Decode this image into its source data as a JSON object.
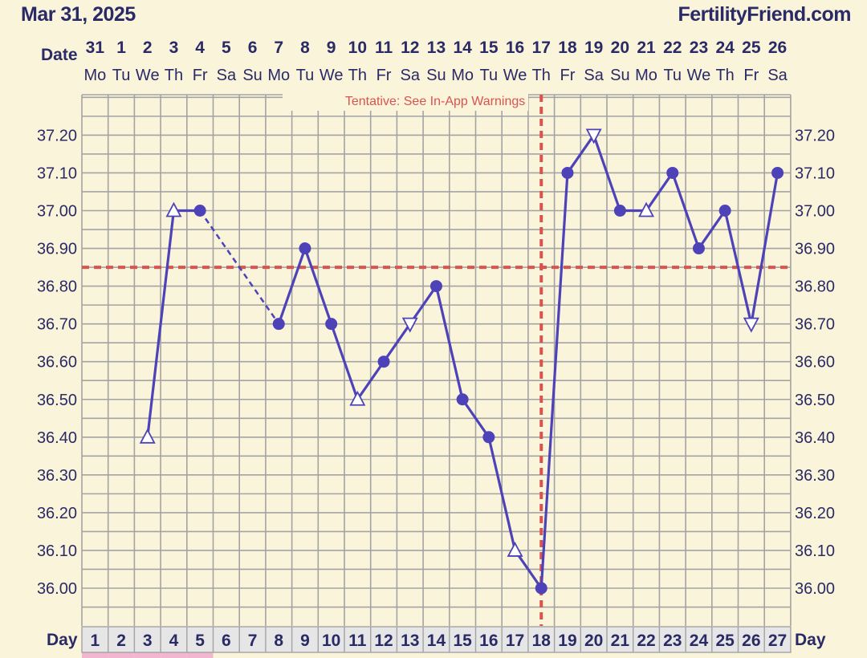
{
  "header": {
    "date": "Mar 31, 2025",
    "site": "FertilityFriend.com"
  },
  "colors": {
    "background": "#faf4da",
    "grid": "#a3a3a3",
    "line": "#4d42b8",
    "coverline": "#d9534f",
    "label": "#2a2a66",
    "menstruation": "#f2b6d0"
  },
  "chart_data": {
    "type": "line",
    "row_labels": {
      "date": "Date",
      "day": "Day"
    },
    "dates": [
      "31",
      "1",
      "2",
      "3",
      "4",
      "5",
      "6",
      "7",
      "8",
      "9",
      "10",
      "11",
      "12",
      "13",
      "14",
      "15",
      "16",
      "17",
      "18",
      "19",
      "20",
      "21",
      "22",
      "23",
      "24",
      "25",
      "26"
    ],
    "weekdays": [
      "Mo",
      "Tu",
      "We",
      "Th",
      "Fr",
      "Sa",
      "Su",
      "Mo",
      "Tu",
      "We",
      "Th",
      "Fr",
      "Sa",
      "Su",
      "Mo",
      "Tu",
      "We",
      "Th",
      "Fr",
      "Sa",
      "Su",
      "Mo",
      "Tu",
      "We",
      "Th",
      "Fr",
      "Sa"
    ],
    "cycle_days": [
      1,
      2,
      3,
      4,
      5,
      6,
      7,
      8,
      9,
      10,
      11,
      12,
      13,
      14,
      15,
      16,
      17,
      18,
      19,
      20,
      21,
      22,
      23,
      24,
      25,
      26,
      27
    ],
    "y_ticks": [
      "37.20",
      "37.10",
      "37.00",
      "36.90",
      "36.80",
      "36.70",
      "36.60",
      "36.50",
      "36.40",
      "36.30",
      "36.20",
      "36.10",
      "36.00"
    ],
    "ylim": [
      35.93,
      37.3
    ],
    "grid": true,
    "series": [
      {
        "points": [
          {
            "day": 3,
            "temp": 36.4,
            "marker": "triangle-up"
          },
          {
            "day": 4,
            "temp": 37.0,
            "marker": "triangle-up"
          },
          {
            "day": 5,
            "temp": 37.0,
            "marker": "circle"
          },
          {
            "day": 8,
            "temp": 36.7,
            "marker": "circle"
          },
          {
            "day": 9,
            "temp": 36.9,
            "marker": "circle"
          },
          {
            "day": 10,
            "temp": 36.7,
            "marker": "circle"
          },
          {
            "day": 11,
            "temp": 36.5,
            "marker": "triangle-up"
          },
          {
            "day": 12,
            "temp": 36.6,
            "marker": "circle"
          },
          {
            "day": 13,
            "temp": 36.7,
            "marker": "triangle-down"
          },
          {
            "day": 14,
            "temp": 36.8,
            "marker": "circle"
          },
          {
            "day": 15,
            "temp": 36.5,
            "marker": "circle"
          },
          {
            "day": 16,
            "temp": 36.4,
            "marker": "circle"
          },
          {
            "day": 17,
            "temp": 36.1,
            "marker": "triangle-up"
          },
          {
            "day": 18,
            "temp": 36.0,
            "marker": "circle"
          },
          {
            "day": 19,
            "temp": 37.1,
            "marker": "circle"
          },
          {
            "day": 20,
            "temp": 37.2,
            "marker": "triangle-down"
          },
          {
            "day": 21,
            "temp": 37.0,
            "marker": "circle"
          },
          {
            "day": 22,
            "temp": 37.0,
            "marker": "triangle-up"
          },
          {
            "day": 23,
            "temp": 37.1,
            "marker": "circle"
          },
          {
            "day": 24,
            "temp": 36.9,
            "marker": "circle"
          },
          {
            "day": 25,
            "temp": 37.0,
            "marker": "circle"
          },
          {
            "day": 26,
            "temp": 36.7,
            "marker": "triangle-down"
          },
          {
            "day": 27,
            "temp": 37.1,
            "marker": "circle"
          }
        ],
        "dashed_segments": [
          [
            5,
            8
          ]
        ]
      }
    ],
    "coverline": {
      "temp": 36.85
    },
    "ovulation_line": {
      "day": 18
    },
    "annotation": "Tentative: See In-App Warnings",
    "menstruation_days": [
      1,
      2,
      3,
      4,
      5
    ]
  }
}
